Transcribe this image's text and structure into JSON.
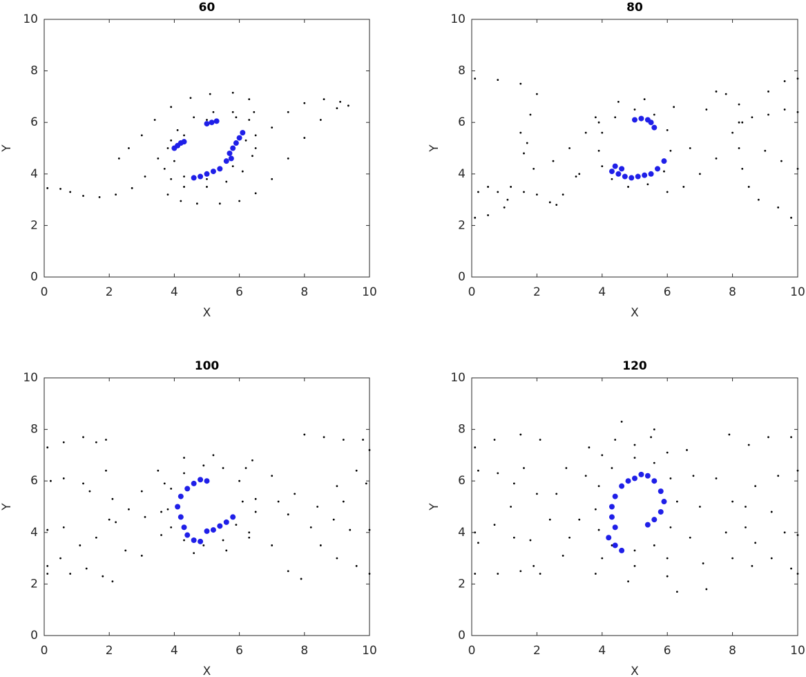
{
  "chart_data": [
    {
      "type": "scatter",
      "title": "60",
      "xlabel": "X",
      "ylabel": "Y",
      "xlim": [
        0,
        10
      ],
      "ylim": [
        0,
        10
      ],
      "xticks": [
        0,
        2,
        4,
        6,
        8,
        10
      ],
      "yticks": [
        0,
        2,
        4,
        6,
        8,
        10
      ],
      "series": [
        {
          "color": "#000000",
          "size": 1.4,
          "x": [
            3.7,
            3.8,
            4.1,
            4.6,
            5.2,
            5.8,
            6.3,
            6.5,
            6.4,
            6.1,
            5.6,
            5.0,
            4.3,
            3.9,
            4.0,
            4.3,
            5.0,
            5.9,
            6.2,
            5.8,
            5.0,
            4.3,
            0.1,
            0.5,
            0.8,
            1.2,
            1.7,
            2.2,
            2.7,
            3.1,
            3.5,
            3.9,
            2.3,
            2.6,
            3.0,
            3.4,
            3.9,
            4.5,
            5.1,
            5.8,
            6.3,
            6.45,
            6.5,
            7.0,
            7.5,
            8.0,
            8.6,
            9.1,
            9.35,
            9.0,
            8.5,
            8.0,
            7.5,
            7.0,
            6.5,
            6.0,
            5.4,
            4.7,
            4.2,
            3.8
          ],
          "values": [
            4.2,
            5.0,
            5.7,
            6.2,
            6.4,
            6.4,
            6.1,
            5.5,
            4.7,
            4.1,
            3.7,
            3.5,
            3.5,
            3.8,
            4.5,
            5.5,
            6.1,
            6.2,
            5.3,
            4.3,
            3.8,
            3.9,
            3.45,
            3.42,
            3.3,
            3.15,
            3.1,
            3.2,
            3.45,
            3.9,
            4.6,
            5.3,
            4.6,
            5.0,
            5.5,
            6.1,
            6.6,
            6.95,
            7.1,
            7.15,
            6.9,
            6.4,
            5.0,
            5.8,
            6.4,
            6.75,
            6.9,
            6.8,
            6.65,
            6.55,
            6.1,
            5.4,
            4.6,
            3.8,
            3.25,
            2.95,
            2.85,
            2.85,
            2.95,
            3.2
          ]
        },
        {
          "color": "#1f1fe8",
          "size": 4,
          "x": [
            4.0,
            4.1,
            4.2,
            4.3,
            4.6,
            4.8,
            5.0,
            5.2,
            5.4,
            5.0,
            5.15,
            5.3,
            5.6,
            5.7,
            5.8,
            5.9,
            6.0,
            6.1,
            5.75
          ],
          "values": [
            5.0,
            5.1,
            5.2,
            5.25,
            3.85,
            3.9,
            4.0,
            4.1,
            4.2,
            5.95,
            6.0,
            6.05,
            4.5,
            4.8,
            5.0,
            5.2,
            5.4,
            5.6,
            4.6
          ]
        }
      ]
    },
    {
      "type": "scatter",
      "title": "80",
      "xlabel": "X",
      "ylabel": "Y",
      "xlim": [
        0,
        10
      ],
      "ylim": [
        0,
        10
      ],
      "xticks": [
        0,
        2,
        4,
        6,
        8,
        10
      ],
      "yticks": [
        0,
        2,
        4,
        6,
        8,
        10
      ],
      "series": [
        {
          "color": "#000000",
          "size": 1.4,
          "x": [
            3.9,
            4.0,
            4.4,
            5.0,
            5.6,
            6.0,
            6.1,
            5.9,
            5.4,
            4.8,
            4.3,
            4.0,
            3.3,
            3.8,
            4.5,
            5.3,
            6.2,
            0.1,
            0.8,
            1.5,
            2.0,
            1.8,
            1.5,
            1.7,
            1.6,
            1.9,
            2.5,
            3.0,
            3.5,
            3.9,
            0.2,
            0.5,
            0.8,
            1.1,
            1.0,
            0.5,
            0.1,
            1.2,
            1.6,
            2.0,
            2.4,
            2.6,
            2.8,
            3.2,
            6.0,
            6.5,
            7.0,
            7.5,
            8.0,
            8.3,
            6.7,
            7.2,
            7.5,
            7.8,
            8.2,
            8.6,
            9.1,
            9.6,
            10.0,
            9.1,
            9.6,
            10.0,
            8.2,
            8.2,
            8.3,
            8.5,
            8.8,
            9.4,
            9.8,
            9.0,
            9.5,
            10.0
          ],
          "values": [
            4.9,
            5.6,
            6.2,
            6.5,
            6.3,
            5.7,
            4.9,
            4.1,
            3.6,
            3.5,
            3.8,
            4.3,
            4.0,
            6.2,
            6.8,
            6.9,
            6.6,
            7.7,
            7.65,
            7.5,
            7.1,
            6.3,
            5.6,
            5.2,
            4.8,
            4.2,
            4.5,
            5.0,
            5.6,
            6.0,
            3.3,
            3.5,
            3.3,
            3.0,
            2.7,
            2.4,
            2.3,
            3.5,
            3.3,
            3.2,
            2.9,
            2.8,
            3.2,
            3.9,
            3.3,
            3.5,
            4.0,
            4.6,
            5.6,
            6.0,
            5.0,
            6.5,
            7.2,
            7.1,
            6.7,
            6.2,
            6.3,
            6.5,
            6.4,
            7.2,
            7.6,
            7.7,
            6.0,
            5.0,
            4.2,
            3.5,
            3.0,
            2.7,
            2.3,
            4.9,
            4.5,
            4.2
          ]
        },
        {
          "color": "#1f1fe8",
          "size": 4,
          "x": [
            5.0,
            5.2,
            5.4,
            5.5,
            5.6,
            4.3,
            4.5,
            4.7,
            4.9,
            5.1,
            5.3,
            5.5,
            5.7,
            5.9,
            4.4,
            4.6
          ],
          "values": [
            6.1,
            6.15,
            6.1,
            6.0,
            5.8,
            4.1,
            4.0,
            3.9,
            3.85,
            3.9,
            3.95,
            4.0,
            4.2,
            4.5,
            4.3,
            4.2
          ]
        }
      ]
    },
    {
      "type": "scatter",
      "title": "100",
      "xlabel": "X",
      "ylabel": "Y",
      "xlim": [
        0,
        10
      ],
      "ylim": [
        0,
        10
      ],
      "xticks": [
        0,
        2,
        4,
        6,
        8,
        10
      ],
      "yticks": [
        0,
        2,
        4,
        6,
        8,
        10
      ],
      "series": [
        {
          "color": "#000000",
          "size": 1.4,
          "x": [
            3.8,
            3.9,
            4.3,
            4.9,
            5.5,
            6.0,
            6.1,
            5.9,
            5.5,
            4.9,
            4.3,
            3.9,
            3.6,
            3.7,
            4.3,
            5.2,
            6.2,
            6.5,
            6.3,
            5.6,
            4.6,
            0.1,
            0.6,
            1.2,
            1.6,
            1.9,
            0.2,
            0.6,
            1.2,
            1.4,
            1.9,
            2.1,
            2.0,
            1.6,
            1.1,
            0.5,
            0.1,
            0.1,
            0.6,
            0.1,
            0.8,
            1.3,
            1.8,
            2.1,
            2.2,
            2.6,
            3.0,
            3.5,
            3.1,
            2.5,
            3.0,
            3.6,
            6.3,
            7.0,
            7.5,
            7.9,
            6.5,
            7.2,
            7.7,
            7.5,
            7.0,
            6.4,
            8.0,
            8.6,
            9.2,
            9.8,
            10.0,
            9.6,
            9.0,
            8.4,
            8.2,
            8.5,
            9.0,
            9.6,
            10.0,
            8.9,
            9.2,
            9.9,
            9.4,
            10.0
          ],
          "values": [
            4.9,
            5.7,
            6.3,
            6.6,
            6.5,
            6.0,
            5.2,
            4.3,
            3.7,
            3.5,
            3.7,
            4.2,
            4.8,
            5.9,
            6.9,
            7.0,
            6.5,
            5.3,
            4.0,
            3.3,
            3.2,
            7.3,
            7.5,
            7.7,
            7.5,
            7.6,
            6.0,
            6.1,
            5.9,
            5.6,
            6.4,
            5.3,
            4.5,
            3.8,
            3.5,
            3.0,
            2.7,
            4.1,
            4.2,
            2.4,
            2.4,
            2.6,
            2.3,
            2.1,
            4.4,
            4.9,
            5.6,
            6.4,
            4.6,
            3.3,
            3.1,
            3.9,
            3.8,
            3.5,
            2.5,
            2.2,
            4.8,
            5.2,
            5.5,
            4.7,
            6.2,
            6.8,
            7.8,
            7.7,
            7.6,
            7.6,
            7.2,
            6.4,
            5.8,
            5.0,
            4.2,
            3.5,
            3.0,
            2.7,
            2.4,
            4.5,
            5.2,
            5.9,
            4.1,
            4.1
          ]
        },
        {
          "color": "#1f1fe8",
          "size": 4,
          "x": [
            5.0,
            4.8,
            4.6,
            4.4,
            4.2,
            4.1,
            4.2,
            4.3,
            4.4,
            4.6,
            4.8,
            5.0,
            5.2,
            5.4,
            5.6,
            5.8
          ],
          "values": [
            6.0,
            6.05,
            5.9,
            5.7,
            5.4,
            5.0,
            4.6,
            4.2,
            3.9,
            3.7,
            3.65,
            4.05,
            4.1,
            4.25,
            4.4,
            4.6
          ]
        }
      ]
    },
    {
      "type": "scatter",
      "title": "120",
      "xlabel": "X",
      "ylabel": "Y",
      "xlim": [
        0,
        10
      ],
      "ylim": [
        0,
        10
      ],
      "xticks": [
        0,
        2,
        4,
        6,
        8,
        10
      ],
      "yticks": [
        0,
        2,
        4,
        6,
        8,
        10
      ],
      "series": [
        {
          "color": "#000000",
          "size": 1.4,
          "x": [
            3.8,
            3.9,
            4.3,
            5.0,
            5.6,
            6.1,
            6.3,
            6.1,
            5.6,
            5.0,
            4.3,
            3.9,
            3.3,
            3.5,
            4.0,
            5.0,
            6.0,
            6.8,
            7.0,
            6.7,
            6.0,
            5.0,
            4.0,
            3.0,
            2.4,
            2.6,
            2.9,
            3.6,
            4.4,
            5.5,
            6.6,
            7.5,
            8.0,
            7.8,
            7.1,
            6.0,
            4.8,
            3.8,
            2.8,
            4.6,
            5.6,
            6.3,
            7.2,
            0.1,
            0.7,
            1.5,
            2.1,
            0.2,
            0.8,
            1.3,
            1.2,
            0.7,
            0.1,
            0.2,
            1.3,
            1.8,
            0.1,
            0.8,
            1.5,
            1.9,
            2.1,
            1.6,
            2.0,
            7.9,
            8.5,
            9.1,
            9.8,
            10.0,
            9.4,
            8.7,
            8.4,
            8.4,
            8.7,
            9.2,
            9.8,
            10.0,
            9.2,
            9.6,
            10.0,
            8.0,
            8.6
          ],
          "values": [
            4.9,
            5.8,
            6.5,
            6.9,
            6.7,
            6.1,
            5.2,
            4.2,
            3.5,
            3.3,
            3.5,
            4.1,
            4.5,
            6.2,
            7.0,
            7.4,
            7.1,
            6.2,
            5.0,
            3.8,
            3.0,
            2.7,
            3.0,
            3.8,
            4.5,
            5.5,
            6.5,
            7.3,
            7.6,
            7.7,
            7.2,
            6.1,
            5.2,
            4.0,
            2.8,
            2.3,
            2.1,
            2.4,
            3.1,
            8.3,
            8.0,
            1.7,
            1.8,
            7.3,
            7.6,
            7.8,
            7.6,
            6.4,
            6.3,
            5.9,
            5.0,
            4.3,
            4.0,
            3.6,
            3.8,
            3.7,
            2.4,
            2.4,
            2.5,
            2.7,
            2.4,
            6.5,
            5.5,
            7.8,
            7.4,
            7.7,
            7.7,
            6.4,
            6.2,
            5.8,
            5.0,
            4.2,
            3.6,
            3.0,
            2.6,
            2.4,
            4.8,
            4.0,
            3.9,
            3.0,
            2.7
          ]
        },
        {
          "color": "#1f1fe8",
          "size": 4,
          "x": [
            5.0,
            4.8,
            4.6,
            4.4,
            4.3,
            4.3,
            4.4,
            4.2,
            4.4,
            4.6,
            5.2,
            5.4,
            5.6,
            5.8,
            5.9,
            5.8,
            5.6,
            5.4
          ],
          "values": [
            6.1,
            6.0,
            5.8,
            5.4,
            5.0,
            4.6,
            4.2,
            3.8,
            3.5,
            3.3,
            6.25,
            6.2,
            6.0,
            5.6,
            5.2,
            4.8,
            4.5,
            4.3
          ]
        }
      ]
    }
  ]
}
